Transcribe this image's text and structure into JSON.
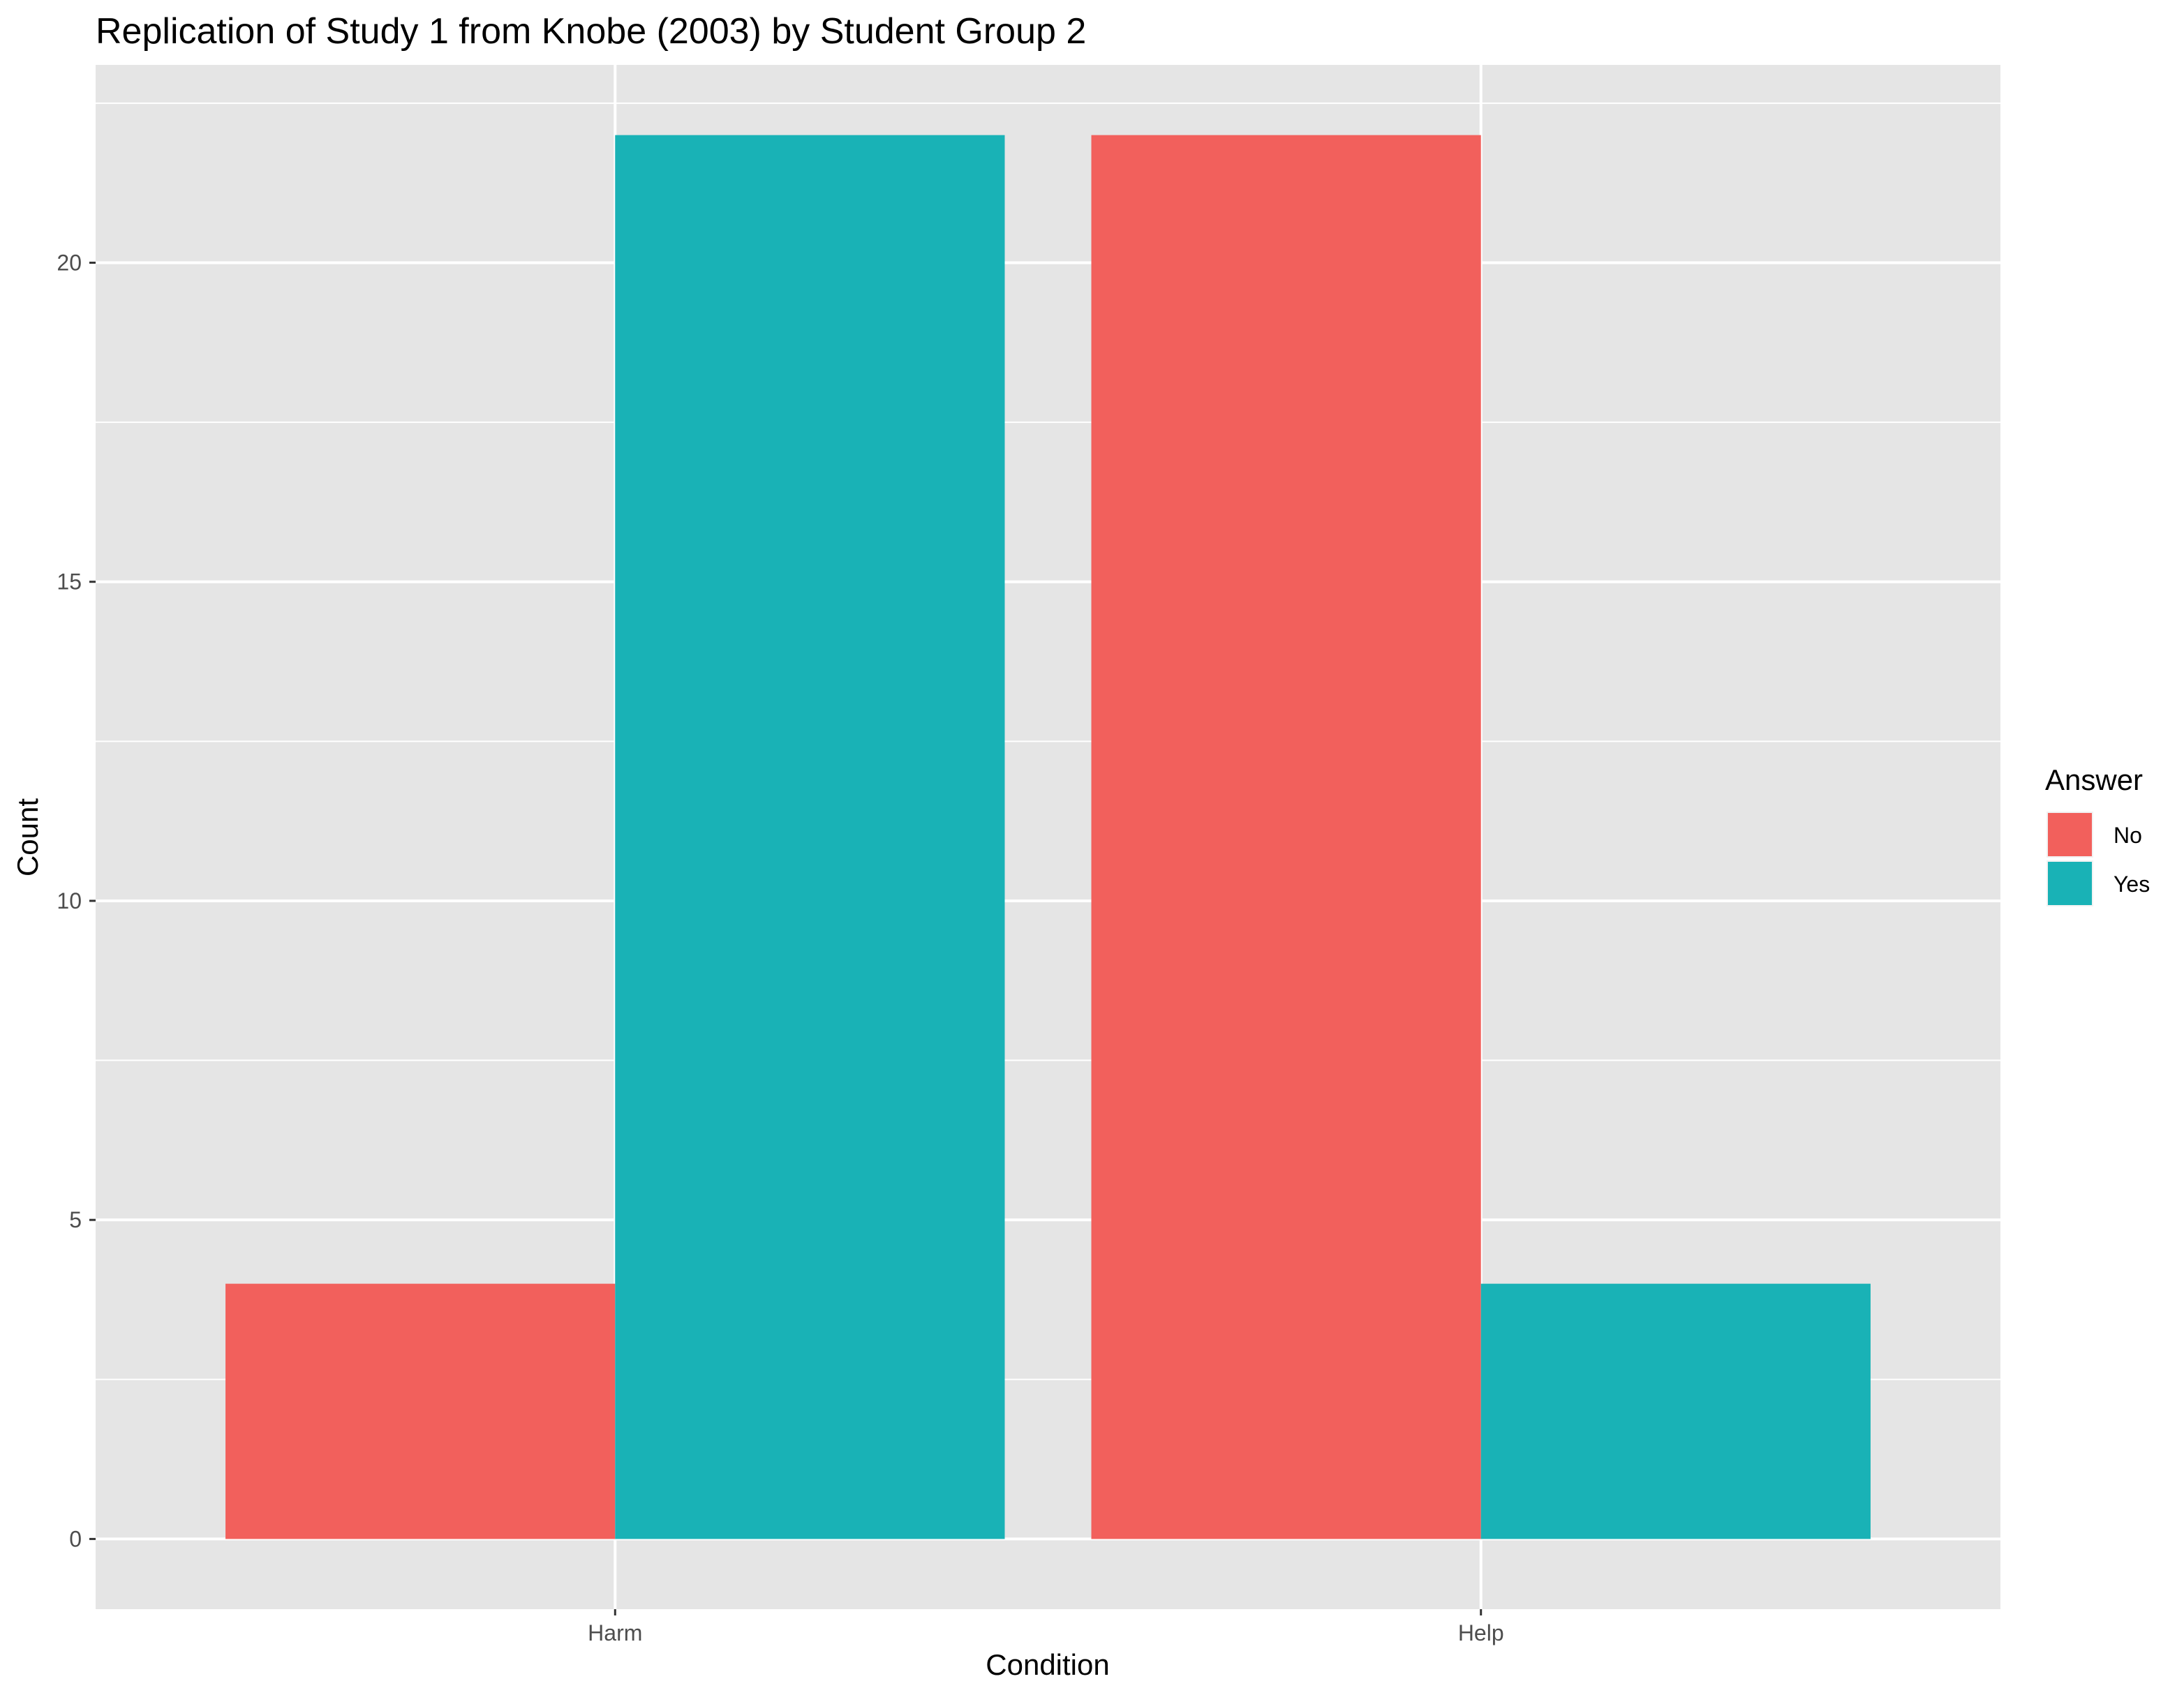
{
  "chart_data": {
    "type": "bar",
    "title": "Replication of Study 1 from Knobe (2003) by Student Group 2",
    "xlabel": "Condition",
    "ylabel": "Count",
    "categories": [
      "Harm",
      "Help"
    ],
    "series": [
      {
        "name": "No",
        "color": "#F2605C",
        "values": [
          4,
          22
        ]
      },
      {
        "name": "Yes",
        "color": "#19B2B6",
        "values": [
          22,
          4
        ]
      }
    ],
    "ylim": [
      -1.1,
      23.1
    ],
    "yticks": [
      0,
      5,
      10,
      15,
      20
    ],
    "ytick_labels": [
      "0",
      "5",
      "10",
      "15",
      "20"
    ],
    "legend": {
      "title": "Answer",
      "position": "right"
    },
    "grid": true,
    "panel_background": "#E5E5E5"
  }
}
